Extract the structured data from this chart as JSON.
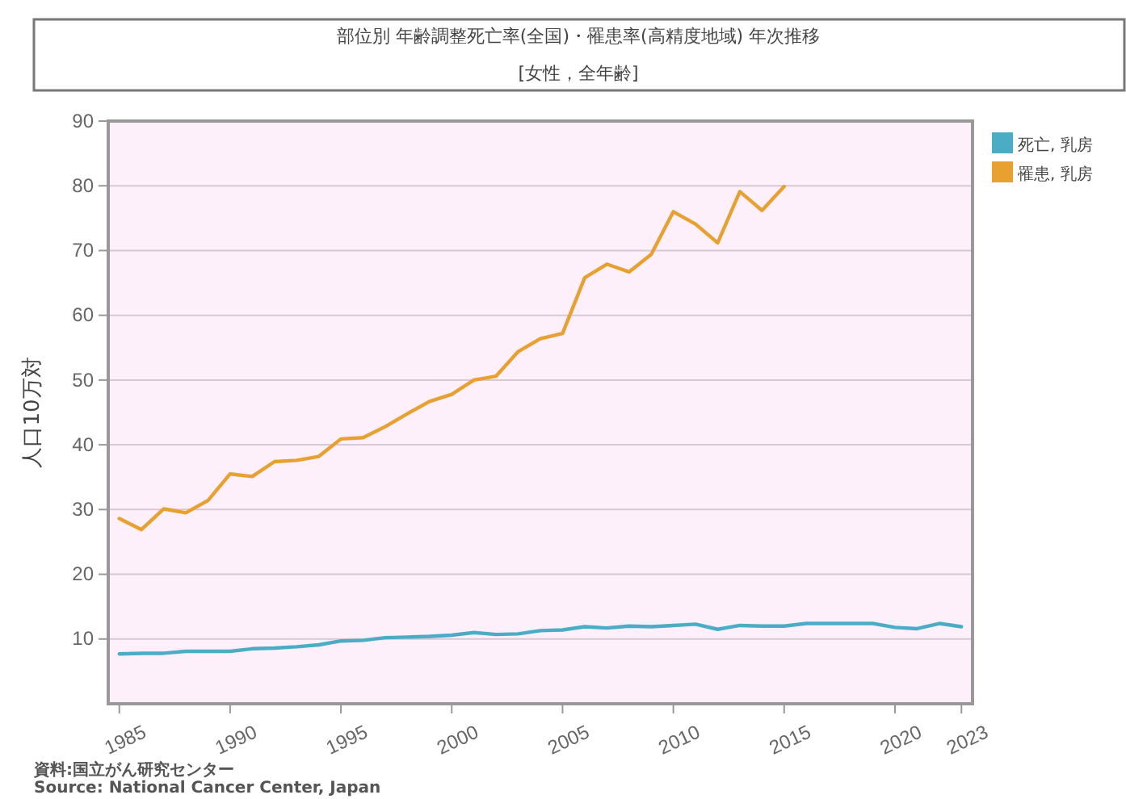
{
  "chart_data": {
    "type": "line",
    "title": "部位別 年齢調整死亡率(全国)・罹患率(高精度地域) 年次推移",
    "subtitle": "[女性，全年齢]",
    "ylabel": "人口10万対",
    "annotations": [
      "資料:国立がん研究センター",
      "Source: National Cancer Center, Japan"
    ],
    "x": [
      1985,
      1986,
      1987,
      1988,
      1989,
      1990,
      1991,
      1992,
      1993,
      1994,
      1995,
      1996,
      1997,
      1998,
      1999,
      2000,
      2001,
      2002,
      2003,
      2004,
      2005,
      2006,
      2007,
      2008,
      2009,
      2010,
      2011,
      2012,
      2013,
      2014,
      2015,
      2016,
      2017,
      2018,
      2019,
      2020,
      2021,
      2022,
      2023
    ],
    "series": [
      {
        "name": "死亡, 乳房",
        "color": "#4bacc6",
        "values": [
          7.7,
          7.8,
          7.8,
          8.1,
          8.1,
          8.1,
          8.5,
          8.6,
          8.8,
          9.1,
          9.7,
          9.8,
          10.2,
          10.3,
          10.4,
          10.6,
          11.0,
          10.7,
          10.8,
          11.3,
          11.4,
          11.9,
          11.7,
          12.0,
          11.9,
          12.1,
          12.3,
          11.5,
          12.1,
          12.0,
          12.0,
          12.4,
          12.4,
          12.4,
          12.4,
          11.8,
          11.6,
          12.4,
          11.9
        ]
      },
      {
        "name": "罹患, 乳房",
        "color": "#e8a030",
        "values": [
          28.6,
          26.9,
          30.1,
          29.5,
          31.4,
          35.5,
          35.1,
          37.4,
          37.6,
          38.2,
          40.9,
          41.1,
          42.8,
          44.8,
          46.7,
          47.8,
          50.0,
          50.6,
          54.4,
          56.4,
          57.2,
          65.8,
          67.9,
          66.7,
          69.4,
          76.0,
          74.1,
          71.2,
          79.1,
          76.2,
          79.9,
          null,
          null,
          null,
          null,
          null,
          null,
          null,
          null
        ]
      }
    ],
    "xlim": [
      1984.5,
      2023.5
    ],
    "xticks": [
      1985,
      1990,
      1995,
      2000,
      2005,
      2010,
      2015,
      2020,
      2023
    ],
    "ylim": [
      0,
      90
    ],
    "yticks": [
      10,
      20,
      30,
      40,
      50,
      60,
      70,
      80,
      90
    ],
    "grid": "y",
    "legend": "top right",
    "marker": "none",
    "line_style": "solid"
  }
}
